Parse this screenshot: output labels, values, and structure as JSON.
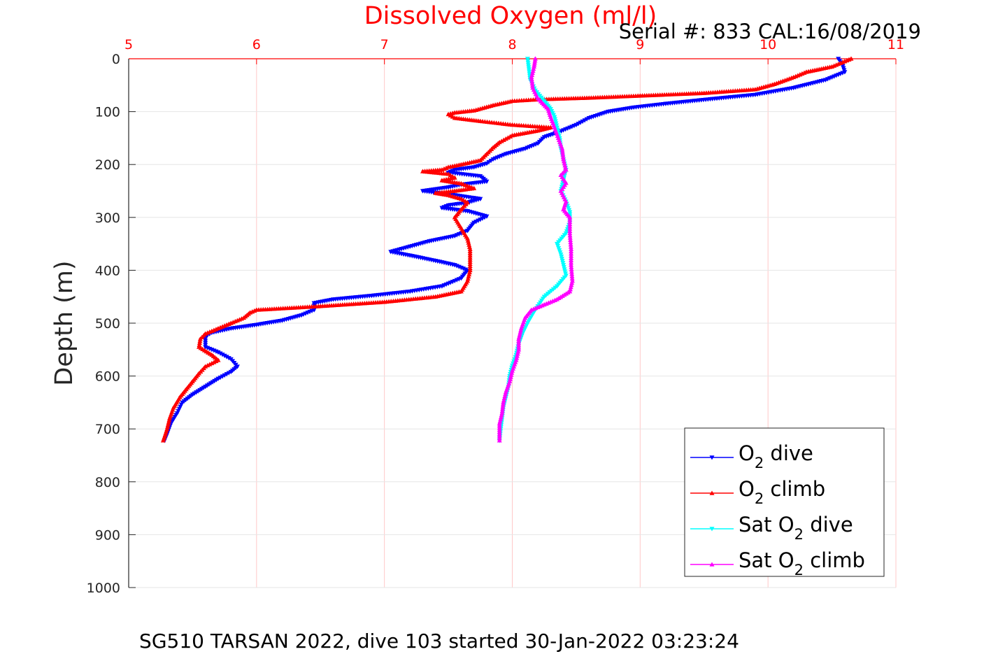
{
  "chart_data": {
    "type": "line",
    "title": "Dissolved Oxygen (ml/l)",
    "subtitle": "Serial #: 833  CAL:16/08/2019",
    "ylabel": "Depth (m)",
    "footer": "SG510 TARSAN 2022, dive 103 started 30-Jan-2022 03:23:24",
    "xlim": [
      5,
      11
    ],
    "ylim": [
      0,
      1000
    ],
    "y_reversed": true,
    "x_axis_position": "top",
    "xticks": [
      "5",
      "6",
      "7",
      "8",
      "9",
      "10",
      "11"
    ],
    "yticks": [
      "0",
      "100",
      "200",
      "300",
      "400",
      "500",
      "600",
      "700",
      "800",
      "900",
      "1000"
    ],
    "grid": true,
    "legend_position": "bottom-right",
    "series": [
      {
        "name": "O2 dive",
        "legend_main": "O",
        "legend_sub": "2",
        "legend_rest": " dive",
        "color": "#0000ff",
        "marker": "triangle-down",
        "points": [
          [
            10.55,
            0
          ],
          [
            10.58,
            10
          ],
          [
            10.6,
            25
          ],
          [
            10.45,
            40
          ],
          [
            10.2,
            55
          ],
          [
            9.9,
            68
          ],
          [
            9.6,
            75
          ],
          [
            9.2,
            85
          ],
          [
            8.95,
            92
          ],
          [
            8.75,
            100
          ],
          [
            8.6,
            112
          ],
          [
            8.5,
            125
          ],
          [
            8.45,
            130
          ],
          [
            8.35,
            140
          ],
          [
            8.25,
            148
          ],
          [
            8.2,
            160
          ],
          [
            8.1,
            170
          ],
          [
            7.95,
            180
          ],
          [
            7.85,
            190
          ],
          [
            7.8,
            198
          ],
          [
            7.7,
            205
          ],
          [
            7.55,
            210
          ],
          [
            7.5,
            215
          ],
          [
            7.75,
            222
          ],
          [
            7.8,
            232
          ],
          [
            7.6,
            238
          ],
          [
            7.5,
            243
          ],
          [
            7.3,
            250
          ],
          [
            7.5,
            256
          ],
          [
            7.75,
            265
          ],
          [
            7.65,
            272
          ],
          [
            7.5,
            277
          ],
          [
            7.45,
            282
          ],
          [
            7.65,
            288
          ],
          [
            7.8,
            298
          ],
          [
            7.7,
            310
          ],
          [
            7.65,
            325
          ],
          [
            7.55,
            335
          ],
          [
            7.35,
            345
          ],
          [
            7.2,
            355
          ],
          [
            7.05,
            365
          ],
          [
            7.2,
            372
          ],
          [
            7.4,
            382
          ],
          [
            7.55,
            390
          ],
          [
            7.65,
            400
          ],
          [
            7.6,
            415
          ],
          [
            7.45,
            430
          ],
          [
            7.2,
            440
          ],
          [
            6.9,
            448
          ],
          [
            6.6,
            455
          ],
          [
            6.45,
            462
          ],
          [
            6.45,
            475
          ],
          [
            6.35,
            485
          ],
          [
            6.2,
            495
          ],
          [
            6.0,
            503
          ],
          [
            5.8,
            510
          ],
          [
            5.65,
            518
          ],
          [
            5.6,
            525
          ],
          [
            5.6,
            545
          ],
          [
            5.7,
            555
          ],
          [
            5.8,
            568
          ],
          [
            5.85,
            582
          ],
          [
            5.8,
            592
          ],
          [
            5.7,
            605
          ],
          [
            5.6,
            620
          ],
          [
            5.5,
            635
          ],
          [
            5.42,
            650
          ],
          [
            5.38,
            670
          ],
          [
            5.33,
            690
          ],
          [
            5.3,
            710
          ],
          [
            5.28,
            722
          ]
        ]
      },
      {
        "name": "O2 climb",
        "legend_main": "O",
        "legend_sub": "2",
        "legend_rest": " climb",
        "color": "#ff0000",
        "marker": "triangle-up",
        "points": [
          [
            10.65,
            0
          ],
          [
            10.6,
            5
          ],
          [
            10.5,
            15
          ],
          [
            10.3,
            25
          ],
          [
            10.2,
            35
          ],
          [
            10.05,
            48
          ],
          [
            9.9,
            58
          ],
          [
            9.5,
            65
          ],
          [
            9.0,
            70
          ],
          [
            8.6,
            74
          ],
          [
            8.2,
            77
          ],
          [
            8.0,
            80
          ],
          [
            7.85,
            88
          ],
          [
            7.7,
            98
          ],
          [
            7.55,
            102
          ],
          [
            7.5,
            105
          ],
          [
            7.55,
            112
          ],
          [
            7.75,
            118
          ],
          [
            8.0,
            125
          ],
          [
            8.3,
            130
          ],
          [
            8.2,
            136
          ],
          [
            8.0,
            145
          ],
          [
            7.9,
            158
          ],
          [
            7.85,
            168
          ],
          [
            7.8,
            180
          ],
          [
            7.75,
            192
          ],
          [
            7.6,
            200
          ],
          [
            7.5,
            205
          ],
          [
            7.45,
            210
          ],
          [
            7.3,
            213
          ],
          [
            7.5,
            218
          ],
          [
            7.55,
            225
          ],
          [
            7.45,
            230
          ],
          [
            7.6,
            236
          ],
          [
            7.7,
            245
          ],
          [
            7.55,
            250
          ],
          [
            7.4,
            254
          ],
          [
            7.5,
            258
          ],
          [
            7.6,
            265
          ],
          [
            7.65,
            272
          ],
          [
            7.6,
            285
          ],
          [
            7.55,
            300
          ],
          [
            7.6,
            320
          ],
          [
            7.65,
            340
          ],
          [
            7.67,
            360
          ],
          [
            7.67,
            380
          ],
          [
            7.67,
            400
          ],
          [
            7.65,
            420
          ],
          [
            7.6,
            440
          ],
          [
            7.4,
            450
          ],
          [
            7.0,
            460
          ],
          [
            6.5,
            468
          ],
          [
            6.0,
            475
          ],
          [
            5.95,
            480
          ],
          [
            5.9,
            490
          ],
          [
            5.8,
            500
          ],
          [
            5.7,
            510
          ],
          [
            5.6,
            520
          ],
          [
            5.56,
            530
          ],
          [
            5.55,
            545
          ],
          [
            5.65,
            560
          ],
          [
            5.7,
            570
          ],
          [
            5.6,
            582
          ],
          [
            5.55,
            595
          ],
          [
            5.5,
            610
          ],
          [
            5.45,
            625
          ],
          [
            5.4,
            640
          ],
          [
            5.35,
            660
          ],
          [
            5.32,
            680
          ],
          [
            5.3,
            700
          ],
          [
            5.28,
            715
          ],
          [
            5.27,
            722
          ]
        ]
      },
      {
        "name": "Sat O2 dive",
        "legend_main": "Sat O",
        "legend_sub": "2",
        "legend_rest": " dive",
        "color": "#00ffff",
        "marker": "triangle-down",
        "points": [
          [
            8.12,
            0
          ],
          [
            8.13,
            20
          ],
          [
            8.14,
            40
          ],
          [
            8.18,
            60
          ],
          [
            8.25,
            80
          ],
          [
            8.3,
            95
          ],
          [
            8.33,
            110
          ],
          [
            8.35,
            130
          ],
          [
            8.37,
            150
          ],
          [
            8.38,
            170
          ],
          [
            8.4,
            190
          ],
          [
            8.42,
            210
          ],
          [
            8.4,
            230
          ],
          [
            8.38,
            250
          ],
          [
            8.42,
            270
          ],
          [
            8.45,
            290
          ],
          [
            8.45,
            310
          ],
          [
            8.42,
            330
          ],
          [
            8.35,
            350
          ],
          [
            8.38,
            370
          ],
          [
            8.4,
            390
          ],
          [
            8.42,
            410
          ],
          [
            8.35,
            430
          ],
          [
            8.25,
            450
          ],
          [
            8.18,
            475
          ],
          [
            8.12,
            500
          ],
          [
            8.08,
            520
          ],
          [
            8.05,
            540
          ],
          [
            8.03,
            560
          ],
          [
            8.0,
            580
          ],
          [
            7.98,
            600
          ],
          [
            7.97,
            620
          ],
          [
            7.95,
            640
          ],
          [
            7.93,
            660
          ],
          [
            7.92,
            680
          ],
          [
            7.91,
            700
          ],
          [
            7.9,
            722
          ]
        ]
      },
      {
        "name": "Sat O2 climb",
        "legend_main": "Sat O",
        "legend_sub": "2",
        "legend_rest": " climb",
        "color": "#ff00ff",
        "marker": "triangle-up",
        "points": [
          [
            8.18,
            0
          ],
          [
            8.17,
            15
          ],
          [
            8.15,
            35
          ],
          [
            8.16,
            55
          ],
          [
            8.2,
            75
          ],
          [
            8.28,
            95
          ],
          [
            8.3,
            110
          ],
          [
            8.33,
            130
          ],
          [
            8.36,
            150
          ],
          [
            8.39,
            170
          ],
          [
            8.4,
            190
          ],
          [
            8.42,
            210
          ],
          [
            8.38,
            220
          ],
          [
            8.42,
            235
          ],
          [
            8.38,
            250
          ],
          [
            8.42,
            270
          ],
          [
            8.4,
            285
          ],
          [
            8.45,
            300
          ],
          [
            8.45,
            330
          ],
          [
            8.46,
            360
          ],
          [
            8.46,
            390
          ],
          [
            8.47,
            420
          ],
          [
            8.45,
            440
          ],
          [
            8.35,
            455
          ],
          [
            8.25,
            465
          ],
          [
            8.15,
            475
          ],
          [
            8.1,
            490
          ],
          [
            8.07,
            510
          ],
          [
            8.05,
            530
          ],
          [
            8.05,
            550
          ],
          [
            8.03,
            570
          ],
          [
            8.0,
            590
          ],
          [
            7.98,
            610
          ],
          [
            7.95,
            630
          ],
          [
            7.93,
            650
          ],
          [
            7.92,
            670
          ],
          [
            7.9,
            690
          ],
          [
            7.9,
            710
          ],
          [
            7.9,
            722
          ]
        ]
      }
    ]
  }
}
